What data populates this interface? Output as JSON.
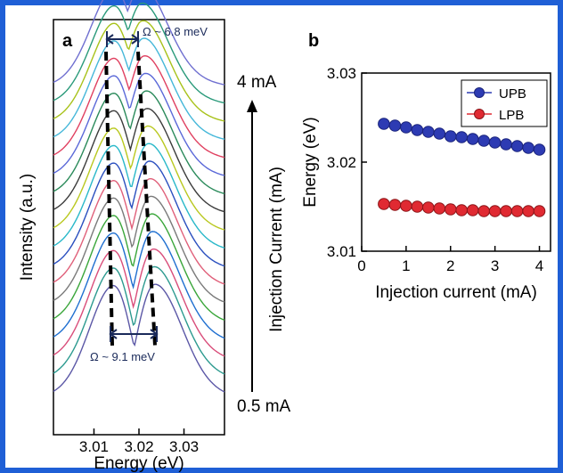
{
  "chart_data": [
    {
      "type": "line",
      "panel_label": "a",
      "xlabel": "Energy (eV)",
      "ylabel": "Intensity (a.u.)",
      "x_ticks": [
        "3.01",
        "3.02",
        "3.03"
      ],
      "x_tick_values": [
        3.01,
        3.02,
        3.03
      ],
      "xlim": [
        3.001,
        3.039
      ],
      "current_axis_label": "Injection Current (mA)",
      "current_high_label": "4 mA",
      "current_low_label": "0.5 mA",
      "annotation_top": "Ω ~ 6.8 meV",
      "annotation_bottom": "Ω ~ 9.1 meV",
      "series_colors": [
        "#5b57a6",
        "#2c9a8f",
        "#d94d7a",
        "#1f6fd0",
        "#3aa63a",
        "#7a7a7a",
        "#e0607a",
        "#2a4fbf",
        "#29b8c9",
        "#b9c81f",
        "#3b3b3b",
        "#2a8a5a",
        "#5a68d8",
        "#e04060",
        "#45b7d9",
        "#a8c21a",
        "#2a9a7a",
        "#6f6fd0"
      ],
      "grid": false
    },
    {
      "type": "scatter",
      "panel_label": "b",
      "xlabel": "Injection current (mA)",
      "ylabel": "Energy (eV)",
      "xlim": [
        0,
        4.25
      ],
      "ylim": [
        3.01,
        3.03
      ],
      "x_ticks": [
        "0",
        "1",
        "2",
        "3",
        "4"
      ],
      "y_ticks": [
        "3.01",
        "3.02",
        "3.03"
      ],
      "legend_position": "top-right",
      "grid": false,
      "x": [
        0.5,
        0.75,
        1.0,
        1.25,
        1.5,
        1.75,
        2.0,
        2.25,
        2.5,
        2.75,
        3.0,
        3.25,
        3.5,
        3.75,
        4.0
      ],
      "series": [
        {
          "name": "UPB",
          "color": "#2d3bb3",
          "values": [
            3.0243,
            3.0241,
            3.0239,
            3.0236,
            3.0234,
            3.0232,
            3.0229,
            3.0228,
            3.0226,
            3.0224,
            3.0222,
            3.022,
            3.0218,
            3.0216,
            3.0214
          ]
        },
        {
          "name": "LPB",
          "color": "#e02a32",
          "values": [
            3.0153,
            3.0152,
            3.0151,
            3.015,
            3.0149,
            3.0148,
            3.0147,
            3.0146,
            3.0146,
            3.0145,
            3.0145,
            3.0145,
            3.0145,
            3.0145,
            3.0145
          ]
        }
      ]
    }
  ]
}
